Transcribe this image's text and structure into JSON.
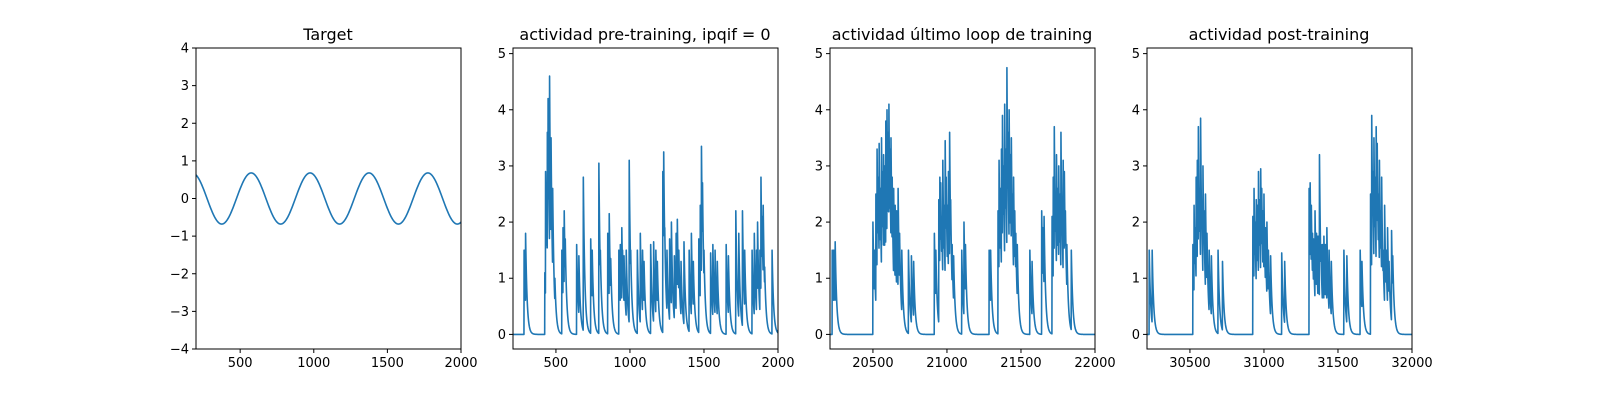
{
  "colors": {
    "line": "#1f77b4",
    "axes": "#000000",
    "background": "#ffffff"
  },
  "chart_data": [
    {
      "type": "line",
      "title": "Target",
      "xlabel": "",
      "ylabel": "",
      "xlim": [
        200,
        2000
      ],
      "ylim": [
        -4,
        4
      ],
      "xticks": [
        500,
        1000,
        1500,
        2000
      ],
      "yticks": [
        -4,
        -3,
        -2,
        -1,
        0,
        1,
        2,
        3,
        4
      ],
      "grid": false,
      "signal": {
        "kind": "sine",
        "amplitude": 0.68,
        "period": 400,
        "peak_at": 575,
        "x_start": 200,
        "x_end": 2000
      },
      "series": [
        {
          "x": [],
          "y": []
        }
      ]
    },
    {
      "type": "line",
      "title": "actividad pre-training, ipqif = 0",
      "xlabel": "",
      "ylabel": "",
      "xlim": [
        210,
        2000
      ],
      "ylim": [
        -0.26,
        5.1
      ],
      "xticks": [
        500,
        1000,
        1500,
        2000
      ],
      "yticks": [
        0,
        1,
        2,
        3,
        4,
        5
      ],
      "grid": false,
      "signal": {
        "kind": "spikes",
        "baseline": 0,
        "decay": 10,
        "spikes": [
          [
            285,
            1.5
          ],
          [
            295,
            1.8
          ],
          [
            300,
            0.4
          ],
          [
            425,
            1.1
          ],
          [
            430,
            2.9
          ],
          [
            437,
            2.3
          ],
          [
            442,
            3.6
          ],
          [
            447,
            4.2
          ],
          [
            452,
            2.5
          ],
          [
            457,
            4.6
          ],
          [
            462,
            2.0
          ],
          [
            467,
            3.5
          ],
          [
            472,
            1.6
          ],
          [
            478,
            2.6
          ],
          [
            485,
            1.2
          ],
          [
            493,
            1.0
          ],
          [
            540,
            1.5
          ],
          [
            548,
            1.9
          ],
          [
            556,
            2.2
          ],
          [
            563,
            1.7
          ],
          [
            575,
            0.5
          ],
          [
            640,
            1.6
          ],
          [
            655,
            1.4
          ],
          [
            685,
            2.8
          ],
          [
            693,
            1.2
          ],
          [
            735,
            1.7
          ],
          [
            745,
            1.5
          ],
          [
            790,
            3.05
          ],
          [
            800,
            1.5
          ],
          [
            850,
            1.8
          ],
          [
            860,
            2.15
          ],
          [
            870,
            1.35
          ],
          [
            925,
            1.5
          ],
          [
            935,
            1.6
          ],
          [
            945,
            1.9
          ],
          [
            950,
            1.5
          ],
          [
            960,
            1.4
          ],
          [
            975,
            1.5
          ],
          [
            995,
            3.1
          ],
          [
            1005,
            1.5
          ],
          [
            1050,
            1.5
          ],
          [
            1070,
            1.8
          ],
          [
            1085,
            1.5
          ],
          [
            1095,
            1.3
          ],
          [
            1140,
            1.6
          ],
          [
            1160,
            1.65
          ],
          [
            1175,
            1.5
          ],
          [
            1185,
            1.3
          ],
          [
            1222,
            2.9
          ],
          [
            1228,
            3.25
          ],
          [
            1235,
            1.9
          ],
          [
            1250,
            1.5
          ],
          [
            1268,
            1.7
          ],
          [
            1280,
            2.0
          ],
          [
            1300,
            1.4
          ],
          [
            1312,
            1.8
          ],
          [
            1320,
            2.05
          ],
          [
            1330,
            1.5
          ],
          [
            1345,
            1.3
          ],
          [
            1365,
            1.65
          ],
          [
            1400,
            1.5
          ],
          [
            1415,
            1.8
          ],
          [
            1428,
            1.3
          ],
          [
            1465,
            1.7
          ],
          [
            1475,
            2.3
          ],
          [
            1483,
            3.35
          ],
          [
            1490,
            2.7
          ],
          [
            1500,
            1.5
          ],
          [
            1545,
            1.45
          ],
          [
            1560,
            1.6
          ],
          [
            1575,
            1.5
          ],
          [
            1590,
            1.3
          ],
          [
            1650,
            1.6
          ],
          [
            1665,
            1.4
          ],
          [
            1715,
            2.2
          ],
          [
            1735,
            1.8
          ],
          [
            1760,
            2.2
          ],
          [
            1775,
            1.5
          ],
          [
            1825,
            1.5
          ],
          [
            1840,
            1.8
          ],
          [
            1855,
            1.5
          ],
          [
            1862,
            2.0
          ],
          [
            1878,
            1.5
          ],
          [
            1885,
            2.8
          ],
          [
            1893,
            2.1
          ],
          [
            1900,
            2.3
          ],
          [
            1910,
            1.2
          ],
          [
            1960,
            1.5
          ]
        ]
      },
      "series": [
        {
          "x": [],
          "y": []
        }
      ]
    },
    {
      "type": "line",
      "title": "actividad último loop de training",
      "xlabel": "",
      "ylabel": "",
      "xlim": [
        20210,
        22000
      ],
      "ylim": [
        -0.26,
        5.1
      ],
      "xticks": [
        20500,
        21000,
        21500,
        22000
      ],
      "yticks": [
        0,
        1,
        2,
        3,
        4,
        5
      ],
      "grid": false,
      "signal": {
        "kind": "spikes",
        "baseline": 0,
        "decay": 10,
        "spikes": [
          [
            20225,
            1.5
          ],
          [
            20235,
            1.5
          ],
          [
            20245,
            1.65
          ],
          [
            20500,
            2.0
          ],
          [
            20510,
            1.5
          ],
          [
            20520,
            2.5
          ],
          [
            20528,
            3.3
          ],
          [
            20535,
            2.8
          ],
          [
            20542,
            3.4
          ],
          [
            20550,
            2.6
          ],
          [
            20558,
            3.5
          ],
          [
            20565,
            2.9
          ],
          [
            20572,
            3.2
          ],
          [
            20580,
            3.0
          ],
          [
            20587,
            3.8
          ],
          [
            20595,
            4.0
          ],
          [
            20602,
            3.6
          ],
          [
            20608,
            4.1
          ],
          [
            20615,
            3.3
          ],
          [
            20622,
            3.5
          ],
          [
            20630,
            2.8
          ],
          [
            20640,
            2.6
          ],
          [
            20650,
            2.3
          ],
          [
            20660,
            2.2
          ],
          [
            20670,
            2.6
          ],
          [
            20680,
            1.8
          ],
          [
            20695,
            1.5
          ],
          [
            20740,
            1.5
          ],
          [
            20760,
            1.4
          ],
          [
            20775,
            1.3
          ],
          [
            20915,
            1.8
          ],
          [
            20925,
            1.5
          ],
          [
            20945,
            2.4
          ],
          [
            20952,
            2.8
          ],
          [
            20958,
            2.7
          ],
          [
            20965,
            2.1
          ],
          [
            20972,
            3.1
          ],
          [
            20980,
            2.3
          ],
          [
            20988,
            3.45
          ],
          [
            20995,
            2.8
          ],
          [
            21003,
            2.3
          ],
          [
            21010,
            2.9
          ],
          [
            21018,
            3.6
          ],
          [
            21025,
            2.4
          ],
          [
            21035,
            1.6
          ],
          [
            21045,
            1.4
          ],
          [
            21100,
            1.5
          ],
          [
            21115,
            2.0
          ],
          [
            21125,
            1.6
          ],
          [
            21285,
            1.5
          ],
          [
            21295,
            1.5
          ],
          [
            21345,
            2.2
          ],
          [
            21352,
            3.1
          ],
          [
            21360,
            2.6
          ],
          [
            21368,
            3.3
          ],
          [
            21375,
            3.9
          ],
          [
            21382,
            3.0
          ],
          [
            21390,
            4.1
          ],
          [
            21397,
            3.3
          ],
          [
            21405,
            4.75
          ],
          [
            21412,
            3.6
          ],
          [
            21420,
            4.0
          ],
          [
            21428,
            3.2
          ],
          [
            21435,
            3.5
          ],
          [
            21442,
            2.5
          ],
          [
            21450,
            2.8
          ],
          [
            21458,
            2.2
          ],
          [
            21465,
            1.8
          ],
          [
            21475,
            1.6
          ],
          [
            21560,
            1.5
          ],
          [
            21575,
            1.3
          ],
          [
            21640,
            2.2
          ],
          [
            21648,
            1.9
          ],
          [
            21656,
            2.1
          ],
          [
            21710,
            2.1
          ],
          [
            21718,
            2.8
          ],
          [
            21725,
            3.7
          ],
          [
            21733,
            2.4
          ],
          [
            21740,
            3.2
          ],
          [
            21748,
            2.6
          ],
          [
            21755,
            3.0
          ],
          [
            21762,
            2.5
          ],
          [
            21770,
            3.6
          ],
          [
            21777,
            2.4
          ],
          [
            21785,
            3.1
          ],
          [
            21793,
            2.9
          ],
          [
            21800,
            2.2
          ],
          [
            21810,
            1.6
          ],
          [
            21840,
            1.5
          ]
        ]
      },
      "series": [
        {
          "x": [],
          "y": []
        }
      ]
    },
    {
      "type": "line",
      "title": "actividad post-training",
      "xlabel": "",
      "ylabel": "",
      "xlim": [
        30210,
        32000
      ],
      "ylim": [
        -0.26,
        5.1
      ],
      "xticks": [
        30500,
        31000,
        31500,
        32000
      ],
      "yticks": [
        0,
        1,
        2,
        3,
        4,
        5
      ],
      "grid": false,
      "signal": {
        "kind": "spikes",
        "baseline": 0,
        "decay": 10,
        "spikes": [
          [
            30225,
            1.5
          ],
          [
            30245,
            1.5
          ],
          [
            30520,
            1.6
          ],
          [
            30528,
            2.3
          ],
          [
            30535,
            1.9
          ],
          [
            30542,
            2.8
          ],
          [
            30550,
            3.1
          ],
          [
            30557,
            3.7
          ],
          [
            30565,
            2.6
          ],
          [
            30572,
            3.85
          ],
          [
            30580,
            2.3
          ],
          [
            30588,
            3.0
          ],
          [
            30595,
            2.2
          ],
          [
            30605,
            2.5
          ],
          [
            30615,
            1.8
          ],
          [
            30630,
            1.5
          ],
          [
            30645,
            1.4
          ],
          [
            30690,
            1.5
          ],
          [
            30720,
            1.3
          ],
          [
            30925,
            2.1
          ],
          [
            30933,
            2.6
          ],
          [
            30940,
            2.0
          ],
          [
            30948,
            2.4
          ],
          [
            30955,
            2.3
          ],
          [
            30963,
            2.9
          ],
          [
            30970,
            2.4
          ],
          [
            30978,
            2.95
          ],
          [
            30985,
            2.6
          ],
          [
            30993,
            2.2
          ],
          [
            31000,
            2.5
          ],
          [
            31010,
            1.9
          ],
          [
            31020,
            2.0
          ],
          [
            31030,
            1.5
          ],
          [
            31045,
            1.4
          ],
          [
            31120,
            1.45
          ],
          [
            31140,
            1.3
          ],
          [
            31305,
            2.6
          ],
          [
            31312,
            2.7
          ],
          [
            31320,
            2.3
          ],
          [
            31328,
            1.8
          ],
          [
            31335,
            1.7
          ],
          [
            31345,
            2.2
          ],
          [
            31355,
            1.8
          ],
          [
            31365,
            1.75
          ],
          [
            31375,
            3.2
          ],
          [
            31385,
            1.6
          ],
          [
            31395,
            1.6
          ],
          [
            31405,
            1.75
          ],
          [
            31415,
            1.6
          ],
          [
            31425,
            1.9
          ],
          [
            31440,
            1.5
          ],
          [
            31455,
            1.3
          ],
          [
            31540,
            1.5
          ],
          [
            31560,
            1.4
          ],
          [
            31650,
            1.5
          ],
          [
            31662,
            1.3
          ],
          [
            31720,
            2.5
          ],
          [
            31728,
            3.9
          ],
          [
            31735,
            2.9
          ],
          [
            31743,
            3.5
          ],
          [
            31750,
            2.8
          ],
          [
            31758,
            3.7
          ],
          [
            31765,
            3.4
          ],
          [
            31773,
            2.5
          ],
          [
            31780,
            3.1
          ],
          [
            31788,
            2.2
          ],
          [
            31795,
            2.8
          ],
          [
            31805,
            1.5
          ],
          [
            31815,
            2.3
          ],
          [
            31825,
            1.5
          ],
          [
            31835,
            1.9
          ],
          [
            31845,
            1.3
          ],
          [
            31862,
            1.85
          ],
          [
            31870,
            1.4
          ]
        ]
      },
      "series": [
        {
          "x": [],
          "y": []
        }
      ]
    }
  ]
}
